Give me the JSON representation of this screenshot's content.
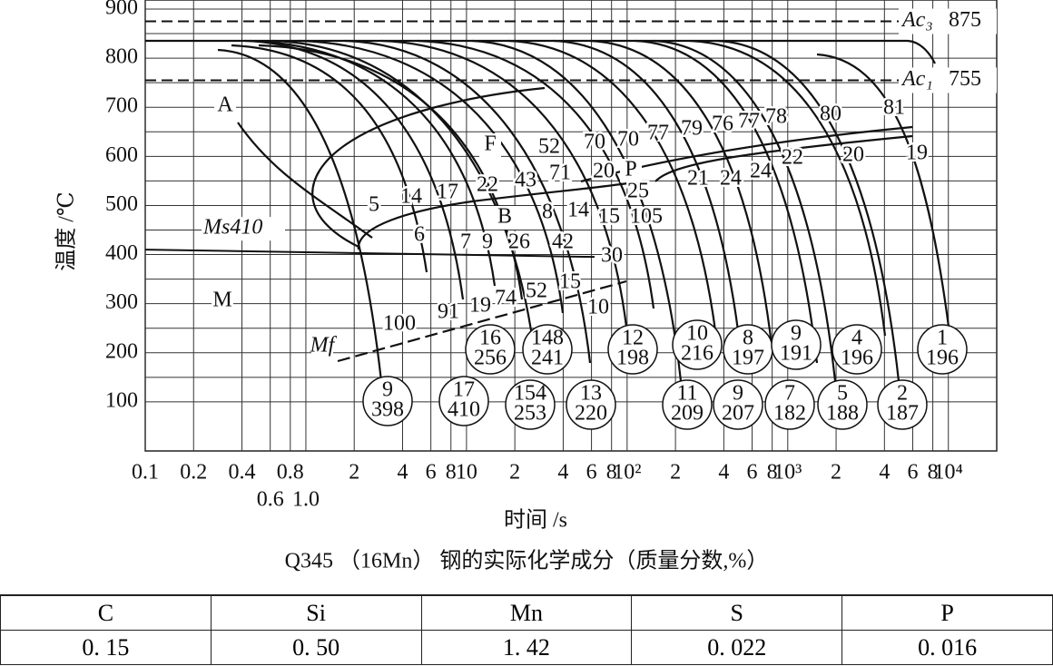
{
  "chart_data": {
    "type": "cct",
    "xlabel": "时间 /s",
    "ylabel": "温度 /℃",
    "xscale": "log",
    "grid": true,
    "xlim": [
      0.1,
      20000
    ],
    "ylim": [
      0,
      900
    ],
    "yticks": [
      100,
      200,
      300,
      400,
      500,
      600,
      700,
      800,
      900
    ],
    "xticks": [
      0.1,
      0.2,
      0.4,
      0.6,
      0.8,
      {
        "value": 1,
        "label": "1.0"
      },
      2,
      4,
      6,
      8,
      10,
      {
        "value": 20,
        "label": "2"
      },
      {
        "value": 40,
        "label": "4"
      },
      {
        "value": 60,
        "label": "6"
      },
      {
        "value": 80,
        "label": "8"
      },
      {
        "value": 100,
        "label": "10²"
      },
      {
        "value": 200,
        "label": "2"
      },
      {
        "value": 400,
        "label": "4"
      },
      {
        "value": 600,
        "label": "6"
      },
      {
        "value": 800,
        "label": "8"
      },
      {
        "value": 1000,
        "label": "10³"
      },
      {
        "value": 2000,
        "label": "2"
      },
      {
        "value": 4000,
        "label": "4"
      },
      {
        "value": 6000,
        "label": "6"
      },
      {
        "value": 8000,
        "label": "8"
      },
      {
        "value": 10000,
        "label": "10⁴"
      }
    ],
    "critical_lines": [
      {
        "label": "Ac₃",
        "value": 875
      },
      {
        "label": "Ac₁",
        "value": 755
      }
    ],
    "ms_line": {
      "value": 410,
      "label": "Ms410"
    },
    "phase_labels": [
      "A",
      "F",
      "P",
      "B",
      "M",
      "Mf"
    ],
    "curve_labels": [
      "52",
      "70",
      "70",
      "77",
      "79",
      "76",
      "77",
      "78",
      "80",
      "81",
      "5",
      "14",
      "17",
      "22",
      "43",
      "71",
      "20",
      "8",
      "14",
      "25",
      "21",
      "24",
      "24",
      "22",
      "20",
      "19",
      "15",
      "105",
      "6",
      "7",
      "9",
      "26",
      "42",
      "30",
      "100",
      "91",
      "19",
      "74",
      "52",
      "15",
      "10"
    ],
    "circles": [
      {
        "top": 16,
        "bottom": 256
      },
      {
        "top": 148,
        "bottom": 241
      },
      {
        "top": 12,
        "bottom": 198
      },
      {
        "top": 10,
        "bottom": 216
      },
      {
        "top": 8,
        "bottom": 197
      },
      {
        "top": 9,
        "bottom": 191
      },
      {
        "top": 4,
        "bottom": 196
      },
      {
        "top": 1,
        "bottom": 196
      },
      {
        "top": 9,
        "bottom": 398
      },
      {
        "top": 17,
        "bottom": 410
      },
      {
        "top": 154,
        "bottom": 253
      },
      {
        "top": 13,
        "bottom": 220
      },
      {
        "top": 11,
        "bottom": 209
      },
      {
        "top": 9,
        "bottom": 207
      },
      {
        "top": 7,
        "bottom": 182
      },
      {
        "top": 5,
        "bottom": 188
      },
      {
        "top": 2,
        "bottom": 187
      }
    ]
  },
  "caption": "Q345 （16Mn） 钢的实际化学成分（质量分数,%）",
  "table": {
    "header": [
      "C",
      "Si",
      "Mn",
      "S",
      "P"
    ],
    "rows": [
      [
        "0. 15",
        "0. 50",
        "1. 42",
        "0. 022",
        "0. 016"
      ]
    ]
  }
}
